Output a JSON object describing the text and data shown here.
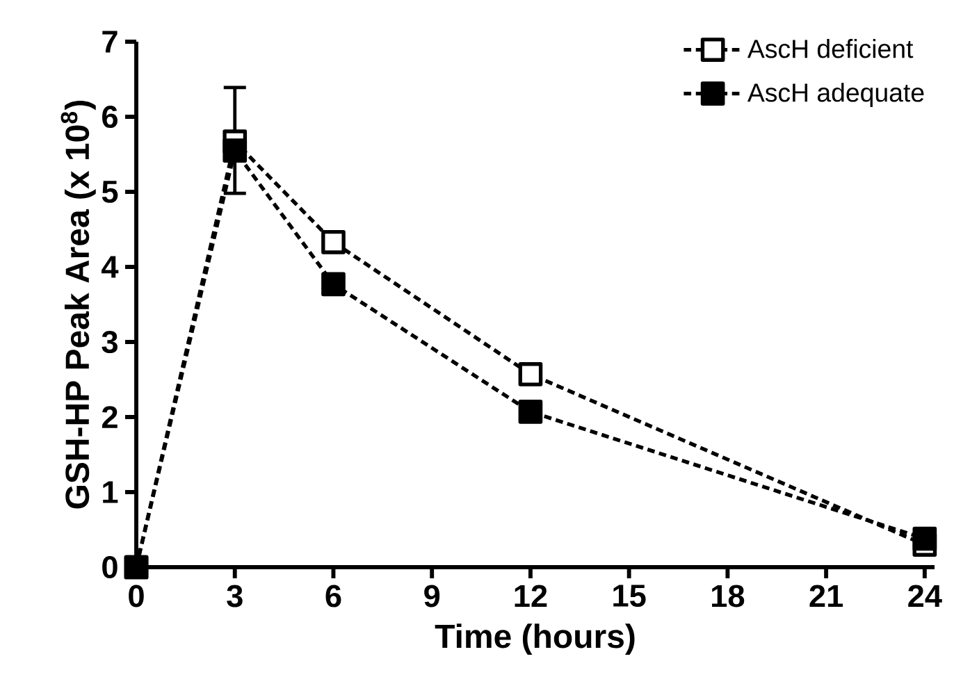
{
  "chart_data": {
    "type": "line",
    "xlabel": "Time (hours)",
    "ylabel": "GSH-HP Peak  Area (x 10$^{8}$)",
    "x": [
      0,
      3,
      6,
      12,
      24
    ],
    "series": [
      {
        "name": "AscH deficient",
        "color": "#000000",
        "values": [
          0,
          5.67,
          4.33,
          2.57,
          0.3
        ],
        "errors": [
          null,
          [
            4.98,
            6.39
          ],
          null,
          null,
          null
        ]
      },
      {
        "name": "AscH adequate",
        "color": "#000000",
        "values": [
          0,
          5.55,
          3.77,
          2.07,
          0.38
        ]
      }
    ],
    "xlim": [
      0,
      24.3
    ],
    "ylim": [
      0,
      7
    ],
    "xticks": [
      0,
      3,
      6,
      9,
      12,
      15,
      18,
      21,
      24
    ],
    "yticks": [
      0,
      1,
      2,
      3,
      4,
      5,
      6,
      7
    ],
    "marker": "square",
    "line_style": "dashed",
    "legend": "top right",
    "grid": false
  }
}
